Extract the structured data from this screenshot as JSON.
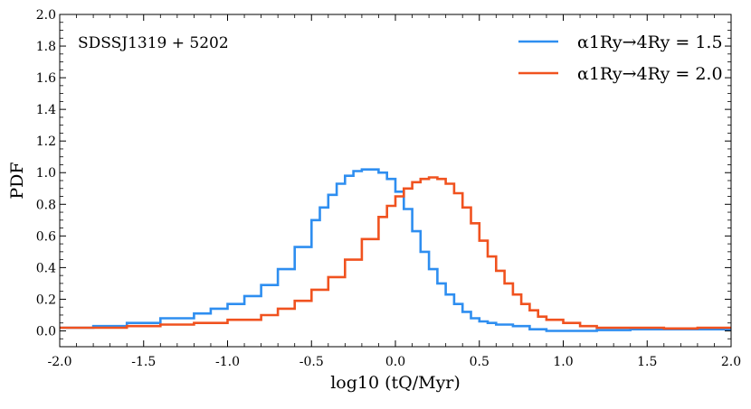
{
  "chart_data": {
    "type": "line",
    "step": true,
    "xlabel": "log10 (tQ/Myr)",
    "ylabel": "PDF",
    "xlim": [
      -2.0,
      2.0
    ],
    "ylim": [
      -0.1,
      2.0
    ],
    "xticks": [
      -2.0,
      -1.5,
      -1.0,
      -0.5,
      0.0,
      0.5,
      1.0,
      1.5,
      2.0
    ],
    "xtick_labels": [
      "-2.0",
      "-1.5",
      "-1.0",
      "-0.5",
      "0.0",
      "0.5",
      "1.0",
      "1.5",
      "2.0"
    ],
    "yticks": [
      0.0,
      0.2,
      0.4,
      0.6,
      0.8,
      1.0,
      1.2,
      1.4,
      1.6,
      1.8,
      2.0
    ],
    "ytick_labels": [
      "0.0",
      "0.2",
      "0.4",
      "0.6",
      "0.8",
      "1.0",
      "1.2",
      "1.4",
      "1.6",
      "1.8",
      "2.0"
    ],
    "annotation": "SDSSJ1319 + 5202",
    "legend_position": "top-right",
    "series": [
      {
        "name": "α1Ry→4Ry = 1.5",
        "color": "#2e8ef0",
        "x": [
          -2.0,
          -1.8,
          -1.6,
          -1.4,
          -1.2,
          -1.1,
          -1.0,
          -0.9,
          -0.8,
          -0.7,
          -0.6,
          -0.5,
          -0.45,
          -0.4,
          -0.35,
          -0.3,
          -0.25,
          -0.2,
          -0.15,
          -0.1,
          -0.05,
          0.0,
          0.05,
          0.1,
          0.15,
          0.2,
          0.25,
          0.3,
          0.35,
          0.4,
          0.45,
          0.5,
          0.55,
          0.6,
          0.7,
          0.8,
          0.9,
          1.0,
          1.2,
          1.4,
          1.6,
          1.8,
          2.0
        ],
        "y": [
          0.02,
          0.03,
          0.05,
          0.08,
          0.11,
          0.14,
          0.17,
          0.22,
          0.29,
          0.39,
          0.53,
          0.7,
          0.78,
          0.86,
          0.93,
          0.98,
          1.01,
          1.02,
          1.02,
          1.0,
          0.96,
          0.88,
          0.77,
          0.63,
          0.5,
          0.39,
          0.3,
          0.23,
          0.17,
          0.12,
          0.08,
          0.06,
          0.05,
          0.04,
          0.03,
          0.01,
          0.0,
          0.0,
          0.005,
          0.01,
          0.01,
          0.01,
          0.01
        ]
      },
      {
        "name": "α1Ry→4Ry = 2.0",
        "color": "#f0521f",
        "x": [
          -2.0,
          -1.8,
          -1.6,
          -1.4,
          -1.2,
          -1.0,
          -0.8,
          -0.7,
          -0.6,
          -0.5,
          -0.4,
          -0.3,
          -0.2,
          -0.1,
          -0.05,
          0.0,
          0.05,
          0.1,
          0.15,
          0.2,
          0.25,
          0.3,
          0.35,
          0.4,
          0.45,
          0.5,
          0.55,
          0.6,
          0.65,
          0.7,
          0.75,
          0.8,
          0.85,
          0.9,
          1.0,
          1.1,
          1.2,
          1.4,
          1.6,
          1.8,
          2.0
        ],
        "y": [
          0.02,
          0.02,
          0.03,
          0.04,
          0.05,
          0.07,
          0.1,
          0.14,
          0.19,
          0.26,
          0.34,
          0.45,
          0.58,
          0.72,
          0.79,
          0.85,
          0.9,
          0.94,
          0.96,
          0.97,
          0.96,
          0.93,
          0.87,
          0.78,
          0.68,
          0.57,
          0.47,
          0.38,
          0.3,
          0.23,
          0.17,
          0.13,
          0.09,
          0.07,
          0.05,
          0.03,
          0.02,
          0.02,
          0.015,
          0.02,
          0.02
        ]
      }
    ]
  }
}
